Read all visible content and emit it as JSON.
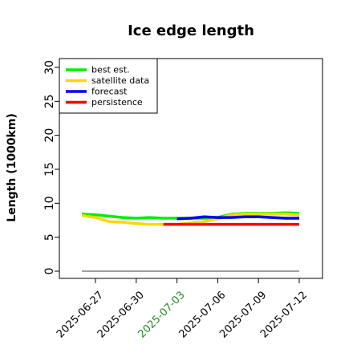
{
  "chart_data": {
    "type": "line",
    "title": "Ice edge length",
    "xlabel": "",
    "ylabel": "Length (1000km)",
    "ylim": [
      0,
      30
    ],
    "yticks": [
      0,
      5,
      10,
      15,
      20,
      25,
      30
    ],
    "xlim": [
      "2025-06-24",
      "2025-07-14"
    ],
    "xticks": [
      {
        "label": "2025-06-27",
        "color": "#000000"
      },
      {
        "label": "2025-06-30",
        "color": "#000000"
      },
      {
        "label": "2025-07-03",
        "color": "#228b22"
      },
      {
        "label": "2025-07-06",
        "color": "#000000"
      },
      {
        "label": "2025-07-09",
        "color": "#000000"
      },
      {
        "label": "2025-07-12",
        "color": "#000000"
      }
    ],
    "legend_position": "top-left",
    "series": [
      {
        "name": "best est.",
        "color": "#00ee00",
        "x": [
          "2025-06-26",
          "2025-06-27",
          "2025-06-28",
          "2025-06-29",
          "2025-06-30",
          "2025-07-01",
          "2025-07-02",
          "2025-07-03",
          "2025-07-04",
          "2025-07-05",
          "2025-07-06",
          "2025-07-07",
          "2025-07-08",
          "2025-07-09",
          "2025-07-10",
          "2025-07-11",
          "2025-07-12"
        ],
        "y": [
          8.4,
          8.3,
          8.1,
          7.9,
          7.8,
          7.9,
          7.8,
          7.8,
          7.8,
          7.8,
          7.9,
          8.4,
          8.5,
          8.5,
          8.5,
          8.6,
          8.5
        ]
      },
      {
        "name": "satellite data",
        "color": "#ffd700",
        "x": [
          "2025-06-26",
          "2025-06-27",
          "2025-06-28",
          "2025-06-29",
          "2025-06-30",
          "2025-07-01",
          "2025-07-02",
          "2025-07-03",
          "2025-07-04",
          "2025-07-05",
          "2025-07-06",
          "2025-07-07",
          "2025-07-08",
          "2025-07-09",
          "2025-07-10",
          "2025-07-11",
          "2025-07-12"
        ],
        "y": [
          8.2,
          7.9,
          7.3,
          7.2,
          7.0,
          6.9,
          6.9,
          6.9,
          7.1,
          7.3,
          7.7,
          8.3,
          8.4,
          8.4,
          8.4,
          8.4,
          8.3
        ]
      },
      {
        "name": "forecast",
        "color": "#0000ee",
        "x": [
          "2025-07-03",
          "2025-07-04",
          "2025-07-05",
          "2025-07-06",
          "2025-07-07",
          "2025-07-08",
          "2025-07-09",
          "2025-07-10",
          "2025-07-11",
          "2025-07-12"
        ],
        "y": [
          7.7,
          7.8,
          8.0,
          7.9,
          7.9,
          8.0,
          8.0,
          7.9,
          7.8,
          7.8
        ]
      },
      {
        "name": "persistence",
        "color": "#ff0000",
        "x": [
          "2025-07-02",
          "2025-07-12"
        ],
        "y": [
          6.9,
          6.9
        ]
      }
    ],
    "reference_line": {
      "y": 0,
      "x": [
        "2025-06-26",
        "2025-07-12"
      ],
      "color": "#808080"
    }
  }
}
